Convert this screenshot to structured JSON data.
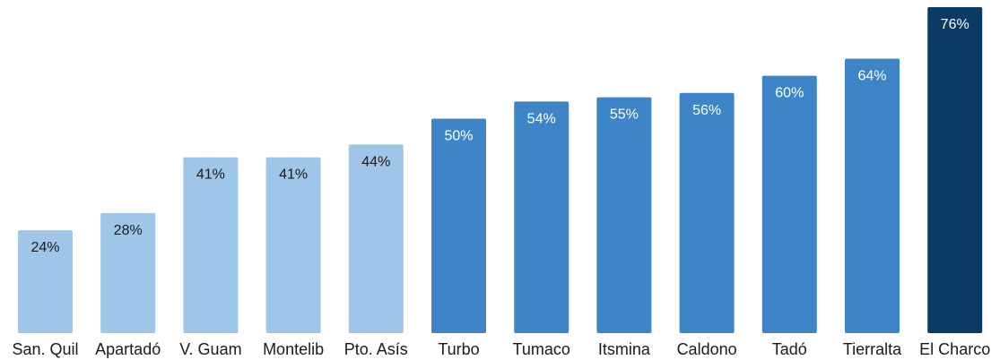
{
  "chart_data": {
    "type": "bar",
    "title": "",
    "xlabel": "",
    "ylabel": "",
    "ylim": [
      0,
      76
    ],
    "categories": [
      "San. Quil",
      "Apartadó",
      "V. Guam",
      "Montelib",
      "Pto. Asís",
      "Turbo",
      "Tumaco",
      "Itsmina",
      "Caldono",
      "Tadó",
      "Tierralta",
      "El Charco"
    ],
    "values": [
      24,
      28,
      41,
      41,
      44,
      50,
      54,
      55,
      56,
      60,
      64,
      76
    ],
    "value_labels": [
      "24%",
      "28%",
      "41%",
      "41%",
      "44%",
      "50%",
      "54%",
      "55%",
      "56%",
      "60%",
      "64%",
      "76%"
    ],
    "bar_colors": [
      "#9fc5e8",
      "#9fc5e8",
      "#9fc5e8",
      "#9fc5e8",
      "#9fc5e8",
      "#3d85c6",
      "#3d85c6",
      "#3d85c6",
      "#3d85c6",
      "#3d85c6",
      "#3d85c6",
      "#0b3a64"
    ],
    "label_colors": [
      "#1a1a1a",
      "#1a1a1a",
      "#1a1a1a",
      "#1a1a1a",
      "#1a1a1a",
      "#ffffff",
      "#ffffff",
      "#ffffff",
      "#ffffff",
      "#ffffff",
      "#ffffff",
      "#ffffff"
    ],
    "grid": false,
    "legend": "none"
  }
}
